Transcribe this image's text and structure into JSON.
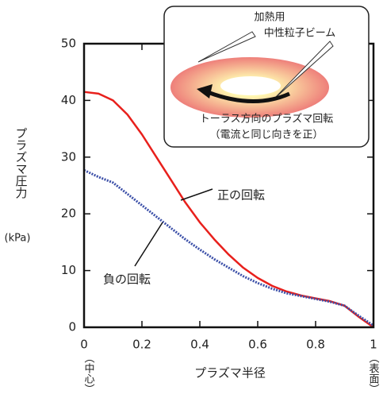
{
  "chart_data": {
    "type": "line",
    "y_label": "プラズマ圧力",
    "y_unit": "(kPa)",
    "x_label": "プラズマ半径",
    "x_start_note": "（中心）",
    "x_end_note": "（表面）",
    "inset": {
      "beam_label_1": "加熱用",
      "beam_label_2": "中性粒子ビーム",
      "caption_1": "トーラス方向のプラズマ回転",
      "caption_2": "（電流と同じ向きを正）"
    },
    "x": [
      0,
      0.05,
      0.1,
      0.15,
      0.2,
      0.25,
      0.3,
      0.35,
      0.4,
      0.45,
      0.5,
      0.55,
      0.6,
      0.65,
      0.7,
      0.75,
      0.8,
      0.85,
      0.9,
      0.95,
      1.0
    ],
    "series": [
      {
        "name": "正の回転",
        "color": "#e8201c",
        "values": [
          41.5,
          41.2,
          40,
          37.5,
          34,
          30,
          26,
          22,
          18.5,
          15.5,
          12.8,
          10.5,
          8.7,
          7.3,
          6.3,
          5.6,
          5.1,
          4.6,
          3.8,
          1.8,
          0
        ]
      },
      {
        "name": "負の回転",
        "color": "#3b4fa8",
        "values": [
          27.7,
          26.5,
          25.5,
          23.5,
          21.5,
          19.5,
          17.5,
          15.5,
          13.7,
          12,
          10.5,
          9,
          7.8,
          6.8,
          6,
          5.5,
          5,
          4.5,
          3.8,
          2,
          0.3
        ]
      }
    ],
    "xlim": [
      0,
      1
    ],
    "ylim": [
      0,
      50
    ],
    "xticks": [
      0,
      0.2,
      0.4,
      0.6,
      0.8,
      1
    ],
    "yticks": [
      0,
      10,
      20,
      30,
      40,
      50
    ]
  }
}
